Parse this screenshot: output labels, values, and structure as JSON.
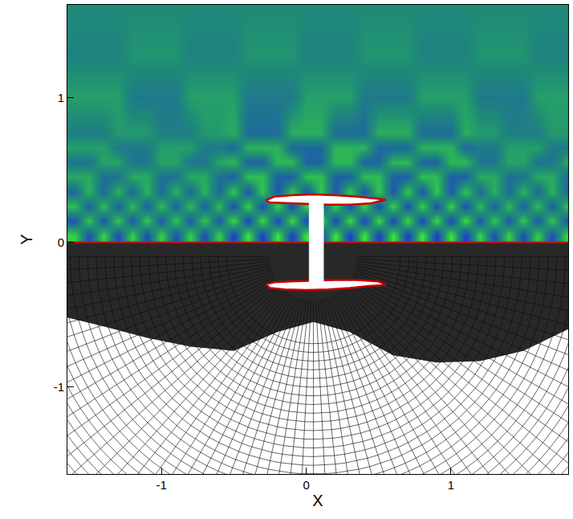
{
  "chart_data": {
    "type": "contour",
    "x_label": "X",
    "y_label": "Y",
    "xlim": [
      -1.65,
      1.81
    ],
    "ylim": [
      -1.6,
      1.64
    ],
    "xticks": [
      -1,
      0,
      1
    ],
    "yticks": [
      -1,
      0,
      1
    ],
    "grid": false,
    "tick_labels": true,
    "field": {
      "x": [
        -1.6,
        -1.5,
        -1.4,
        -1.3,
        -1.2,
        -1.1,
        -1.0,
        -0.9,
        -0.8,
        -0.7,
        -0.6,
        -0.5,
        -0.4,
        -0.3,
        -0.2,
        -0.1,
        0,
        0.1,
        0.2,
        0.3,
        0.4,
        0.5,
        0.6,
        0.7,
        0.8,
        0.9,
        1.0,
        1.1,
        1.2,
        1.3,
        1.4,
        1.5,
        1.6,
        1.7,
        1.8
      ],
      "y": [
        0.05,
        0.15,
        0.25,
        0.35,
        0.45,
        0.55,
        0.65,
        0.75,
        1.0,
        1.3,
        1.6
      ],
      "zlim": [
        -1,
        1
      ],
      "z": [
        [
          0.7,
          -0.7,
          0.7,
          -0.7,
          0.7,
          -0.7,
          0.7,
          -0.7,
          0.7,
          -0.7,
          0.7,
          -0.9,
          0.9,
          -0.9,
          0.9,
          -0.9,
          0.9,
          -0.9,
          0.9,
          -0.9,
          0.9,
          -0.9,
          0.9,
          -0.9,
          0.9,
          -0.9,
          0.9,
          -0.9,
          0.7,
          -0.7,
          0.7,
          -0.7,
          0.7,
          -0.7,
          0.7
        ],
        [
          -0.6,
          0.6,
          -0.6,
          0.6,
          -0.6,
          0.6,
          -0.6,
          0.6,
          -0.6,
          0.6,
          -0.6,
          0.8,
          -0.8,
          0.8,
          -0.8,
          0.8,
          -0.8,
          0.8,
          -0.8,
          0.8,
          -0.8,
          0.8,
          -0.8,
          0.8,
          -0.8,
          0.8,
          -0.8,
          0.8,
          -0.6,
          0.6,
          -0.6,
          0.6,
          -0.6,
          0.6,
          -0.6
        ],
        [
          0.5,
          -0.5,
          0.5,
          -0.5,
          0.5,
          -0.5,
          0.5,
          -0.5,
          0.5,
          -0.5,
          0.5,
          -0.7,
          0.7,
          -0.7,
          0.7,
          -0.7,
          0.7,
          -0.7,
          0.7,
          -0.7,
          0.7,
          -0.7,
          0.7,
          -0.7,
          0.7,
          -0.7,
          0.7,
          -0.7,
          0.5,
          -0.5,
          0.5,
          -0.5,
          0.5,
          -0.5,
          0.5
        ],
        [
          -0.4,
          0.4,
          -0.4,
          0.4,
          -0.4,
          0.4,
          -0.4,
          0.4,
          -0.4,
          0.4,
          -0.4,
          0.6,
          -0.6,
          0.6,
          -0.6,
          0.6,
          -0.6,
          0.6,
          -0.6,
          0.6,
          -0.6,
          0.6,
          -0.6,
          0.6,
          -0.6,
          0.6,
          -0.6,
          0.6,
          -0.4,
          0.4,
          -0.4,
          0.4,
          -0.4,
          0.4,
          -0.4
        ],
        [
          0.3,
          0.3,
          -0.3,
          -0.3,
          0.3,
          0.3,
          -0.3,
          -0.3,
          0.3,
          0.3,
          -0.3,
          -0.5,
          0.5,
          0.5,
          -0.5,
          -0.5,
          0.5,
          0.5,
          -0.5,
          -0.5,
          0.5,
          0.5,
          -0.5,
          -0.5,
          0.5,
          0.5,
          -0.5,
          -0.5,
          0.3,
          0.3,
          -0.3,
          -0.3,
          0.3,
          0.3,
          -0.3
        ],
        [
          -0.25,
          -0.25,
          0.25,
          0.25,
          -0.25,
          -0.25,
          0.25,
          0.25,
          -0.25,
          -0.25,
          0.25,
          0.45,
          -0.45,
          -0.45,
          0.45,
          0.45,
          -0.45,
          -0.45,
          0.45,
          0.45,
          -0.45,
          -0.45,
          0.45,
          0.45,
          -0.45,
          -0.45,
          0.45,
          0.45,
          -0.25,
          -0.25,
          0.25,
          0.25,
          -0.25,
          -0.25,
          0.25
        ],
        [
          0.2,
          0.2,
          0.2,
          -0.2,
          -0.2,
          -0.2,
          0.2,
          0.2,
          0.2,
          -0.2,
          -0.2,
          -0.4,
          0.4,
          0.4,
          0.4,
          -0.4,
          -0.4,
          -0.4,
          0.4,
          0.4,
          0.4,
          -0.4,
          -0.4,
          -0.4,
          0.4,
          0.4,
          0.4,
          -0.4,
          -0.2,
          -0.2,
          0.2,
          0.2,
          0.2,
          -0.2,
          -0.2
        ],
        [
          -0.15,
          -0.15,
          -0.15,
          0.15,
          0.15,
          0.15,
          -0.15,
          -0.15,
          -0.15,
          0.15,
          0.15,
          0.35,
          -0.35,
          -0.35,
          -0.35,
          0.35,
          0.35,
          0.35,
          -0.35,
          -0.35,
          -0.35,
          0.35,
          0.35,
          0.35,
          -0.35,
          -0.35,
          -0.35,
          0.35,
          0.15,
          0.15,
          -0.15,
          -0.15,
          -0.15,
          0.15,
          0.15
        ],
        [
          0.2,
          0.2,
          0.2,
          0.2,
          -0.2,
          -0.2,
          -0.2,
          -0.2,
          0.2,
          0.2,
          0.2,
          0.2,
          -0.2,
          -0.2,
          -0.2,
          -0.2,
          0.2,
          0.2,
          0.2,
          0.2,
          -0.2,
          -0.2,
          -0.2,
          -0.2,
          0.2,
          0.2,
          0.2,
          0.2,
          -0.2,
          -0.2,
          -0.2,
          -0.2,
          0.2,
          0.2,
          0.2
        ],
        [
          -0.1,
          -0.1,
          -0.1,
          -0.1,
          0.1,
          0.1,
          0.1,
          0.1,
          -0.1,
          -0.1,
          -0.1,
          -0.1,
          0.1,
          0.1,
          0.1,
          0.1,
          -0.1,
          -0.1,
          -0.1,
          -0.1,
          0.1,
          0.1,
          0.1,
          0.1,
          -0.1,
          -0.1,
          -0.1,
          -0.1,
          0.1,
          0.1,
          0.1,
          0.1,
          -0.1,
          -0.1,
          -0.1
        ],
        [
          0,
          0,
          0,
          0,
          0,
          0,
          0,
          0,
          0,
          0,
          0,
          0,
          0,
          0,
          0,
          0,
          0,
          0,
          0,
          0,
          0,
          0,
          0,
          0,
          0,
          0,
          0,
          0,
          0,
          0,
          0,
          0,
          0,
          0,
          0
        ]
      ]
    },
    "wall_y": 0,
    "bodies": [
      {
        "line_style": "solid",
        "x": [
          -0.28,
          -0.22,
          -0.1,
          0.05,
          0.2,
          0.35,
          0.5,
          0.55,
          0.45,
          0.3,
          0.15,
          0,
          -0.15,
          -0.25,
          -0.28
        ],
        "y": [
          0.29,
          0.315,
          0.325,
          0.33,
          0.325,
          0.315,
          0.3,
          0.295,
          0.27,
          0.26,
          0.26,
          0.265,
          0.27,
          0.275,
          0.29
        ]
      },
      {
        "line_style": "solid",
        "x": [
          -0.28,
          -0.22,
          -0.1,
          0.05,
          0.2,
          0.35,
          0.5,
          0.55,
          0.45,
          0.3,
          0.15,
          0,
          -0.15,
          -0.25,
          -0.28
        ],
        "y": [
          -0.29,
          -0.275,
          -0.27,
          -0.265,
          -0.26,
          -0.26,
          -0.27,
          -0.295,
          -0.3,
          -0.315,
          -0.325,
          -0.33,
          -0.325,
          -0.315,
          -0.29
        ]
      },
      {
        "line_style": "none",
        "x": [
          0.02,
          0.12,
          0.12,
          0.02,
          0.02
        ],
        "y": [
          -0.28,
          -0.28,
          0.28,
          0.28,
          -0.28
        ]
      }
    ],
    "mesh_dense_region": {
      "x": [
        -1.65,
        1.81,
        1.81,
        1.5,
        1.2,
        0.9,
        0.6,
        0.3,
        0.05,
        -0.2,
        -0.5,
        -0.8,
        -1.1,
        -1.4,
        -1.65
      ],
      "y": [
        0,
        0,
        -0.6,
        -0.75,
        -0.82,
        -0.83,
        -0.78,
        -0.62,
        -0.55,
        -0.62,
        -0.75,
        -0.72,
        -0.66,
        -0.58,
        -0.52
      ]
    }
  }
}
